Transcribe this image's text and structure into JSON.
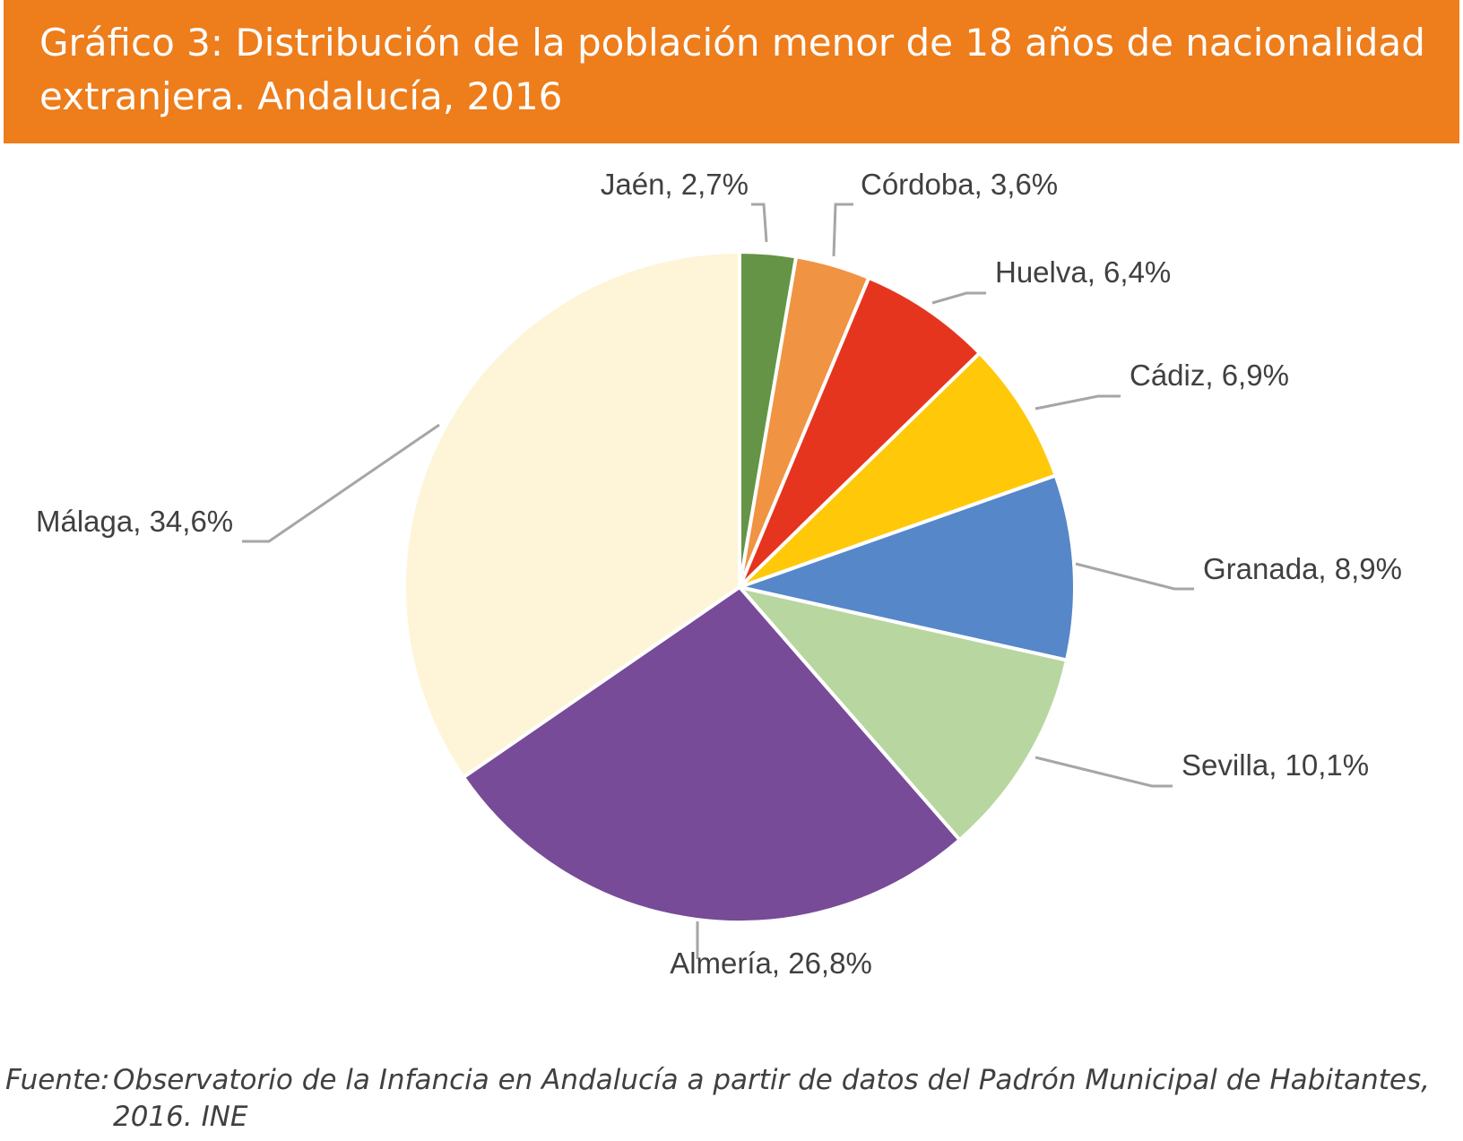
{
  "header": {
    "title": "Gráfico 3: Distribución de la población menor de 18 años de nacionalidad extranjera. Andalucía, 2016",
    "background_color": "#ee7d1b"
  },
  "chart_data": {
    "type": "pie",
    "title": "Gráfico 3: Distribución de la población menor de 18 años de nacionalidad extranjera. Andalucía, 2016",
    "unit": "%",
    "slices": [
      {
        "label": "Jaén, 2,7%",
        "name": "Jaén",
        "value": 2.7,
        "color": "#659446"
      },
      {
        "label": "Córdoba, 3,6%",
        "name": "Córdoba",
        "value": 3.6,
        "color": "#f09343"
      },
      {
        "label": "Huelva, 6,4%",
        "name": "Huelva",
        "value": 6.4,
        "color": "#e5351f"
      },
      {
        "label": "Cádiz, 6,9%",
        "name": "Cádiz",
        "value": 6.9,
        "color": "#ffc90a"
      },
      {
        "label": "Granada, 8,9%",
        "name": "Granada",
        "value": 8.9,
        "color": "#5687c8"
      },
      {
        "label": "Sevilla, 10,1%",
        "name": "Sevilla",
        "value": 10.1,
        "color": "#b8d6a0"
      },
      {
        "label": "Almería, 26,8%",
        "name": "Almería",
        "value": 26.8,
        "color": "#774b97"
      },
      {
        "label": "Málaga, 34,6%",
        "name": "Málaga",
        "value": 34.6,
        "color": "#fef4d7"
      }
    ],
    "start_angle": "top, clockwise",
    "legend": "none (labels with leader lines)"
  },
  "footer": {
    "source_label": "Fuente:",
    "source_text": "Observatorio de la Infancia en Andalucía a partir de datos del Padrón Municipal de Habitantes, 2016. INE"
  }
}
